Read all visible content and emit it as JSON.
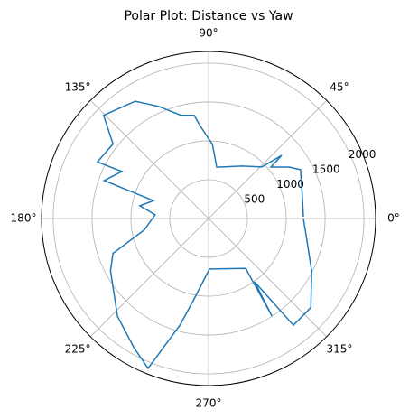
{
  "chart_data": {
    "type": "polar",
    "title": "Polar Plot: Distance vs Yaw",
    "color": "#1f77b4",
    "grid": true,
    "theta": [
      1,
      14.6,
      28,
      32.6,
      39.6,
      40.8,
      44,
      57.5,
      81,
      87,
      95,
      98,
      105,
      114,
      122,
      135.5,
      142,
      153,
      151.5,
      160,
      162,
      169.5,
      176,
      190,
      200,
      208,
      227,
      240,
      248,
      255,
      260,
      271,
      306.7,
      303,
      306,
      308.5,
      319,
      333,
      346,
      360
    ],
    "values": [
      1220,
      1245,
      1340,
      1230,
      1040,
      1245,
      955,
      800,
      670,
      955,
      1190,
      1340,
      1375,
      1580,
      1780,
      1895,
      1560,
      1605,
      1270,
      1430,
      745,
      900,
      690,
      840,
      1310,
      1430,
      1720,
      1920,
      2080,
      1420,
      1040,
      650,
      800,
      1500,
      1010,
      1755,
      1745,
      1490,
      1310,
      1220
    ],
    "ylim": [
      0,
      2150
    ],
    "yticks": [
      500,
      1000,
      1500,
      2000
    ],
    "xticks": [
      {
        "value": 0,
        "label": "0°"
      },
      {
        "value": 45,
        "label": "45°"
      },
      {
        "value": 90,
        "label": "90°"
      },
      {
        "value": 135,
        "label": "135°"
      },
      {
        "value": 180,
        "label": "180°"
      },
      {
        "value": 225,
        "label": "225°"
      },
      {
        "value": 270,
        "label": "270°"
      },
      {
        "value": 315,
        "label": "315°"
      }
    ]
  }
}
